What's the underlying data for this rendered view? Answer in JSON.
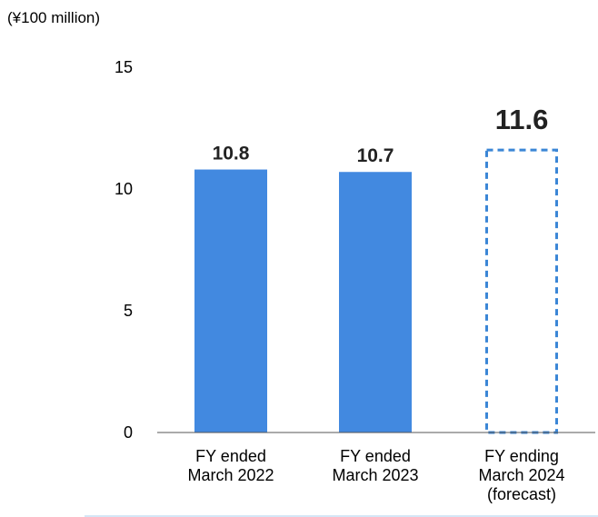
{
  "chart_data": {
    "type": "bar",
    "unit_label": "(¥100 million)",
    "categories": [
      [
        "FY ended",
        "March 2022"
      ],
      [
        "FY ended",
        "March 2023"
      ],
      [
        "FY ending",
        "March 2024",
        "(forecast)"
      ]
    ],
    "values": [
      10.8,
      10.7,
      11.6
    ],
    "value_labels": [
      "10.8",
      "10.7",
      "11.6"
    ],
    "forecast": [
      false,
      false,
      true
    ],
    "ylim": [
      0,
      15
    ],
    "yticks": [
      0,
      5,
      10,
      15
    ],
    "ytick_labels": [
      "0",
      "5",
      "10",
      "15"
    ],
    "grid": false,
    "colors": {
      "bar": "#4289e0",
      "forecast_outline": "#3b86d6",
      "axis": "#555555",
      "bottom_rule": "#d5e6f6"
    }
  }
}
